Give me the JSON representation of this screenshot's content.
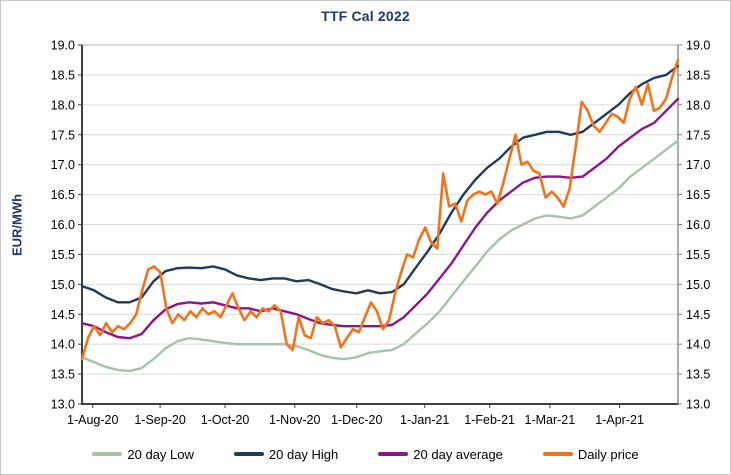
{
  "title": "TTF Cal 2022",
  "y_axis_title": "EUR/MWh",
  "colors": {
    "title": "#1f3864",
    "gridline": "#d9d9d9",
    "axis_dark": "#404040",
    "axis_right": "#808080",
    "plot_top_border": "#bfbfbf",
    "tick_text": "#000000"
  },
  "chart_data": {
    "type": "line",
    "title": "TTF Cal 2022",
    "xlabel": "",
    "ylabel": "EUR/MWh",
    "ylim": [
      13.0,
      19.0
    ],
    "ytick_step": 0.5,
    "y_tick_labels": [
      "19.0",
      "18.5",
      "18.0",
      "17.5",
      "17.0",
      "16.5",
      "16.0",
      "15.5",
      "15.0",
      "14.5",
      "14.0",
      "13.5",
      "13.0"
    ],
    "grid": "horizontal",
    "legend_position": "bottom",
    "x_ticks": [
      {
        "label": "1-Aug-20",
        "pos": 0.018
      },
      {
        "label": "1-Sep-20",
        "pos": 0.131
      },
      {
        "label": "1-Oct-20",
        "pos": 0.24
      },
      {
        "label": "1-Nov-20",
        "pos": 0.357
      },
      {
        "label": "1-Dec-20",
        "pos": 0.461
      },
      {
        "label": "1-Jan-21",
        "pos": 0.575
      },
      {
        "label": "1-Feb-21",
        "pos": 0.684
      },
      {
        "label": "1-Mar-21",
        "pos": 0.785
      },
      {
        "label": "1-Apr-21",
        "pos": 0.902
      }
    ],
    "series": [
      {
        "name": "20 day Low",
        "color": "#a5c3a9",
        "width": 2.4,
        "values": [
          13.78,
          13.7,
          13.62,
          13.57,
          13.55,
          13.6,
          13.75,
          13.93,
          14.05,
          14.1,
          14.08,
          14.05,
          14.02,
          14.0,
          14.0,
          14.0,
          14.0,
          14.0,
          13.97,
          13.9,
          13.82,
          13.77,
          13.75,
          13.78,
          13.85,
          13.88,
          13.9,
          14.0,
          14.18,
          14.35,
          14.55,
          14.8,
          15.05,
          15.3,
          15.55,
          15.75,
          15.9,
          16.0,
          16.1,
          16.15,
          16.13,
          16.1,
          16.15,
          16.3,
          16.45,
          16.6,
          16.8,
          16.95,
          17.1,
          17.25,
          17.4
        ]
      },
      {
        "name": "20 day High",
        "color": "#1f3b5c",
        "width": 2.4,
        "values": [
          14.97,
          14.9,
          14.78,
          14.7,
          14.7,
          14.78,
          15.05,
          15.22,
          15.27,
          15.28,
          15.27,
          15.3,
          15.25,
          15.15,
          15.1,
          15.07,
          15.1,
          15.1,
          15.05,
          15.07,
          15.0,
          14.92,
          14.88,
          14.85,
          14.9,
          14.85,
          14.87,
          15.0,
          15.28,
          15.55,
          15.85,
          16.2,
          16.5,
          16.75,
          16.95,
          17.1,
          17.3,
          17.45,
          17.5,
          17.55,
          17.55,
          17.5,
          17.55,
          17.7,
          17.85,
          18.0,
          18.2,
          18.35,
          18.45,
          18.5,
          18.65
        ]
      },
      {
        "name": "20 day average",
        "color": "#8c148c",
        "width": 2.4,
        "values": [
          14.35,
          14.3,
          14.2,
          14.12,
          14.1,
          14.17,
          14.4,
          14.58,
          14.67,
          14.7,
          14.68,
          14.7,
          14.65,
          14.6,
          14.6,
          14.55,
          14.6,
          14.55,
          14.5,
          14.42,
          14.35,
          14.32,
          14.3,
          14.3,
          14.3,
          14.3,
          14.32,
          14.45,
          14.65,
          14.85,
          15.1,
          15.35,
          15.65,
          15.95,
          16.2,
          16.4,
          16.55,
          16.7,
          16.78,
          16.8,
          16.8,
          16.78,
          16.8,
          16.95,
          17.1,
          17.3,
          17.45,
          17.6,
          17.7,
          17.9,
          18.1
        ]
      },
      {
        "name": "Daily price",
        "color": "#f4731a",
        "width": 2.6,
        "values": [
          13.75,
          14.1,
          14.3,
          14.15,
          14.35,
          14.2,
          14.3,
          14.25,
          14.35,
          14.5,
          14.9,
          15.25,
          15.3,
          15.2,
          14.6,
          14.35,
          14.5,
          14.4,
          14.55,
          14.45,
          14.6,
          14.5,
          14.55,
          14.45,
          14.65,
          14.85,
          14.6,
          14.4,
          14.55,
          14.45,
          14.6,
          14.55,
          14.65,
          14.55,
          14.0,
          13.9,
          14.45,
          14.15,
          14.1,
          14.45,
          14.35,
          14.4,
          14.3,
          13.95,
          14.1,
          14.25,
          14.2,
          14.45,
          14.7,
          14.55,
          14.25,
          14.4,
          14.85,
          15.2,
          15.5,
          15.45,
          15.75,
          15.95,
          15.7,
          15.6,
          16.85,
          16.3,
          16.35,
          16.05,
          16.4,
          16.5,
          16.55,
          16.5,
          16.55,
          16.35,
          16.7,
          17.1,
          17.5,
          17.0,
          17.05,
          16.9,
          16.85,
          16.45,
          16.55,
          16.45,
          16.3,
          16.6,
          17.3,
          18.05,
          17.9,
          17.65,
          17.55,
          17.7,
          17.85,
          17.8,
          17.7,
          18.1,
          18.3,
          18.0,
          18.35,
          17.9,
          17.95,
          18.1,
          18.45,
          18.75
        ]
      }
    ]
  }
}
